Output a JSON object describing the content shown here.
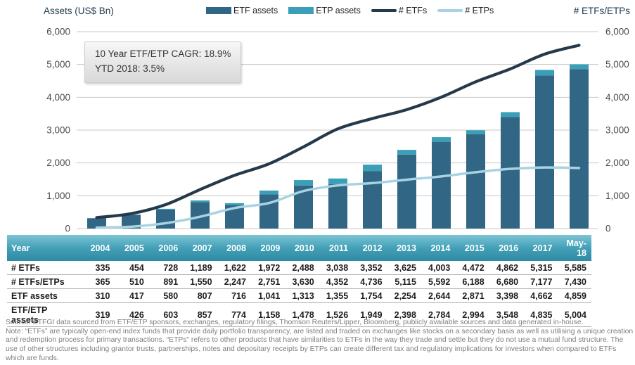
{
  "chart": {
    "left_axis_title": "Assets (US$ Bn)",
    "right_axis_title": "# ETFs/ETPs",
    "legend": [
      {
        "label": "ETF assets",
        "type": "bar",
        "color": "#316685"
      },
      {
        "label": "ETP assets",
        "type": "bar",
        "color": "#3b9fb8"
      },
      {
        "label": "# ETFs",
        "type": "line",
        "color": "#26394a"
      },
      {
        "label": "# ETPs",
        "type": "line",
        "color": "#a9d2e2"
      }
    ]
  },
  "annotation": {
    "line1": "10 Year ETF/ETP CAGR: 18.9%",
    "line2": "YTD 2018: 3.5%"
  },
  "chart_data": {
    "type": "combo",
    "categories": [
      "2004",
      "2005",
      "2006",
      "2007",
      "2008",
      "2009",
      "2010",
      "2011",
      "2012",
      "2013",
      "2014",
      "2015",
      "2016",
      "2017",
      "May-18"
    ],
    "series": [
      {
        "name": "ETF assets",
        "type": "bar",
        "stack": "assets",
        "color": "#316685",
        "values": [
          310,
          417,
          580,
          807,
          716,
          1041,
          1313,
          1355,
          1754,
          2254,
          2644,
          2871,
          3398,
          4662,
          4859
        ]
      },
      {
        "name": "ETP assets",
        "type": "bar",
        "stack": "assets",
        "color": "#3b9fb8",
        "values": [
          9,
          9,
          23,
          50,
          58,
          117,
          165,
          171,
          195,
          144,
          140,
          123,
          150,
          173,
          145
        ]
      },
      {
        "name": "# ETFs",
        "type": "line",
        "color": "#26394a",
        "width": 4.2,
        "values": [
          335,
          454,
          728,
          1189,
          1622,
          1972,
          2488,
          3038,
          3352,
          3625,
          4003,
          4472,
          4862,
          5315,
          5585
        ]
      },
      {
        "name": "# ETPs",
        "type": "line",
        "color": "#a9d2e2",
        "width": 3.5,
        "values": [
          30,
          56,
          163,
          361,
          625,
          779,
          1142,
          1314,
          1384,
          1490,
          1589,
          1716,
          1818,
          1862,
          1845
        ]
      }
    ],
    "title": "",
    "xlabel": "",
    "ylabel_left": "Assets (US$ Bn)",
    "ylabel_right": "# ETFs/ETPs",
    "ylim": [
      0,
      6000
    ],
    "yticks": [
      0,
      1000,
      2000,
      3000,
      4000,
      5000,
      6000
    ],
    "grid": true,
    "legend_position": "top",
    "note": "Stacked bars show ETF assets + ETP assets (total = ETF/ETP assets); lines show counts of ETFs and ETPs on the right axis"
  },
  "table": {
    "header": [
      "Year",
      "2004",
      "2005",
      "2006",
      "2007",
      "2008",
      "2009",
      "2010",
      "2011",
      "2012",
      "2013",
      "2014",
      "2015",
      "2016",
      "2017",
      "May-18"
    ],
    "rows": [
      {
        "label": "# ETFs",
        "values": [
          "335",
          "454",
          "728",
          "1,189",
          "1,622",
          "1,972",
          "2,488",
          "3,038",
          "3,352",
          "3,625",
          "4,003",
          "4,472",
          "4,862",
          "5,315",
          "5,585"
        ]
      },
      {
        "label": "# ETFs/ETPs",
        "values": [
          "365",
          "510",
          "891",
          "1,550",
          "2,247",
          "2,751",
          "3,630",
          "4,352",
          "4,736",
          "5,115",
          "5,592",
          "6,188",
          "6,680",
          "7,177",
          "7,430"
        ]
      },
      {
        "label": "ETF assets",
        "values": [
          "310",
          "417",
          "580",
          "807",
          "716",
          "1,041",
          "1,313",
          "1,355",
          "1,754",
          "2,254",
          "2,644",
          "2,871",
          "3,398",
          "4,662",
          "4,859"
        ]
      },
      {
        "label": "ETF/ETP assets",
        "values": [
          "319",
          "426",
          "603",
          "857",
          "774",
          "1,158",
          "1,478",
          "1,526",
          "1,949",
          "2,398",
          "2,784",
          "2,994",
          "3,548",
          "4,835",
          "5,004"
        ]
      }
    ]
  },
  "footnote": {
    "source": "Source: ETFGI data sourced from ETF/ETP sponsors, exchanges, regulatory filings, Thomson Reuters/Lipper, Bloomberg, publicly available sources and data generated in-house.",
    "note": "Note: “ETFs” are typically open-end index funds that provide daily portfolio transparency, are listed and traded on exchanges like stocks on a secondary basis as well as utilising a unique creation and redemption process for primary transactions. “ETPs” refers to other products that have similarities to ETFs in the way they trade and settle but they do not use a mutual fund structure. The use of other structures including grantor trusts, partnerships, notes and depositary receipts by ETPs can create different tax and regulatory implications for investors when compared to ETFs which are funds."
  }
}
